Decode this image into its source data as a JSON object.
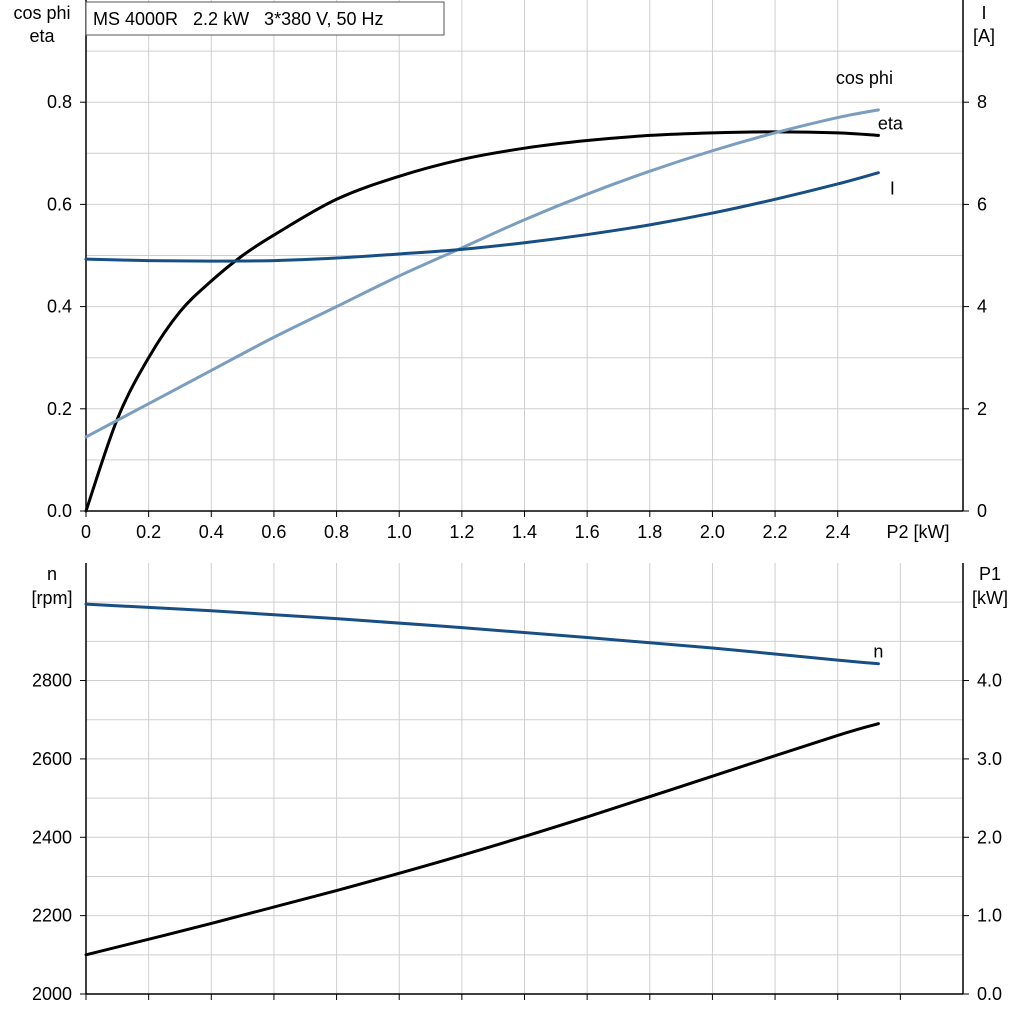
{
  "title_box": "MS 4000R   2.2 kW   3*380 V, 50 Hz",
  "colors": {
    "eta": "#000000",
    "cos_phi": "#7a9ebf",
    "I": "#174f85",
    "n": "#174f85",
    "P1": "#000000",
    "grid": "#cfcfcf"
  },
  "chart_data": [
    {
      "type": "line",
      "panel": "top",
      "x_axis": {
        "label": "P2 [kW]",
        "range": [
          0,
          2.8
        ],
        "ticks": [
          0,
          0.2,
          0.4,
          0.6,
          0.8,
          1.0,
          1.2,
          1.4,
          1.6,
          1.8,
          2.0,
          2.2,
          2.4
        ],
        "tick_labels": [
          "0",
          "0.2",
          "0.4",
          "0.6",
          "0.8",
          "1.0",
          "1.2",
          "1.4",
          "1.6",
          "1.8",
          "2.0",
          "2.2",
          "2.4"
        ]
      },
      "y_left": {
        "label_lines": [
          "cos phi",
          "eta"
        ],
        "range": [
          0,
          1.0
        ],
        "ticks": [
          0,
          0.2,
          0.4,
          0.6,
          0.8
        ],
        "tick_labels": [
          "0.0",
          "0.2",
          "0.4",
          "0.6",
          "0.8"
        ]
      },
      "y_right": {
        "label_lines": [
          "I",
          "[A]"
        ],
        "range": [
          0,
          10
        ],
        "ticks": [
          0,
          2,
          4,
          6,
          8
        ],
        "tick_labels": [
          "0",
          "2",
          "4",
          "6",
          "8"
        ]
      },
      "grid": true,
      "series": [
        {
          "name": "eta",
          "axis": "left",
          "x": [
            0,
            0.1,
            0.2,
            0.3,
            0.4,
            0.5,
            0.6,
            0.8,
            1.0,
            1.2,
            1.4,
            1.6,
            1.8,
            2.0,
            2.2,
            2.4,
            2.53
          ],
          "y": [
            0.0,
            0.18,
            0.3,
            0.39,
            0.45,
            0.5,
            0.54,
            0.61,
            0.655,
            0.688,
            0.71,
            0.725,
            0.735,
            0.74,
            0.742,
            0.74,
            0.735
          ]
        },
        {
          "name": "cos phi",
          "axis": "left",
          "x": [
            0,
            0.2,
            0.4,
            0.6,
            0.8,
            1.0,
            1.2,
            1.4,
            1.6,
            1.8,
            2.0,
            2.2,
            2.4,
            2.53
          ],
          "y": [
            0.145,
            0.21,
            0.275,
            0.34,
            0.4,
            0.46,
            0.515,
            0.57,
            0.62,
            0.665,
            0.705,
            0.74,
            0.77,
            0.785
          ]
        },
        {
          "name": "I",
          "axis": "right",
          "x": [
            0,
            0.2,
            0.4,
            0.6,
            0.8,
            1.0,
            1.2,
            1.4,
            1.6,
            1.8,
            2.0,
            2.2,
            2.4,
            2.53
          ],
          "y": [
            4.93,
            4.9,
            4.89,
            4.9,
            4.95,
            5.03,
            5.12,
            5.25,
            5.41,
            5.6,
            5.83,
            6.1,
            6.4,
            6.62
          ]
        }
      ]
    },
    {
      "type": "line",
      "panel": "bottom",
      "x_axis": {
        "range": [
          0,
          2.8
        ],
        "ticks": [
          0,
          0.2,
          0.4,
          0.6,
          0.8,
          1.0,
          1.2,
          1.4,
          1.6,
          1.8,
          2.0,
          2.2,
          2.4,
          2.6
        ]
      },
      "y_left": {
        "label_lines": [
          "n",
          "[rpm]"
        ],
        "range": [
          2000,
          3100
        ],
        "ticks": [
          2000,
          2200,
          2400,
          2600,
          2800
        ],
        "tick_labels": [
          "2000",
          "2200",
          "2400",
          "2600",
          "2800"
        ]
      },
      "y_right": {
        "label_lines": [
          "P1",
          "[kW]"
        ],
        "range": [
          0,
          5.5
        ],
        "ticks": [
          0,
          1,
          2,
          3,
          4
        ],
        "tick_labels": [
          "0.0",
          "1.0",
          "2.0",
          "3.0",
          "4.0"
        ]
      },
      "grid": true,
      "series": [
        {
          "name": "n",
          "axis": "left",
          "x": [
            0,
            0.4,
            0.8,
            1.2,
            1.6,
            2.0,
            2.4,
            2.53
          ],
          "y": [
            2995,
            2978,
            2958,
            2935,
            2910,
            2883,
            2852,
            2843
          ]
        },
        {
          "name": "P1",
          "axis": "right",
          "x": [
            0,
            0.4,
            0.8,
            1.2,
            1.6,
            2.0,
            2.4,
            2.53
          ],
          "y": [
            0.5,
            0.9,
            1.32,
            1.77,
            2.26,
            2.78,
            3.3,
            3.45
          ]
        }
      ]
    }
  ]
}
